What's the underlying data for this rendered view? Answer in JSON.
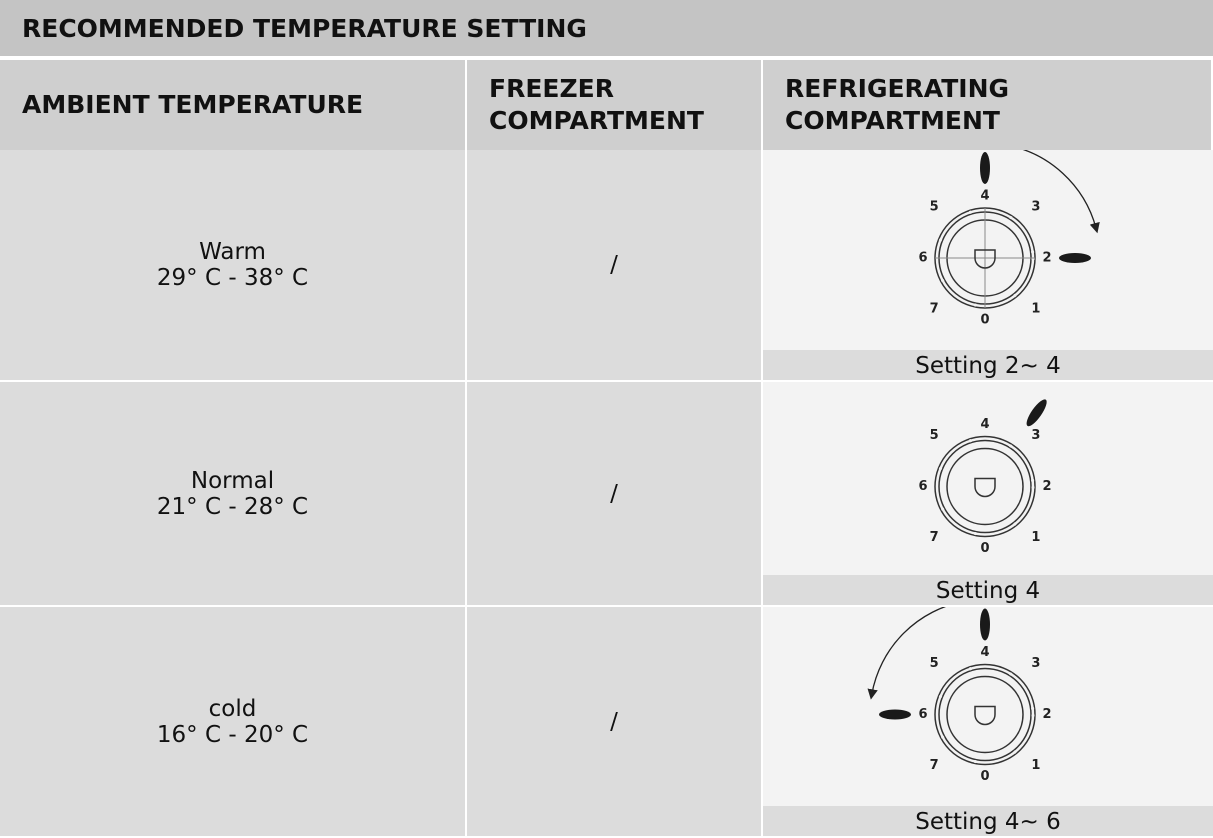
{
  "title": "RECOMMENDED TEMPERATURE SETTING",
  "table": {
    "header": [
      "AMBIENT TEMPERATURE",
      "FREEZER COMPARTMENT",
      "REFRIGERATING COMPARTMENT"
    ],
    "rows": [
      {
        "condition": "Warm",
        "range": "29° C - 38° C",
        "freezer": "/",
        "setting": "Setting 2~ 4"
      },
      {
        "condition": "Normal",
        "range": "21° C - 28° C",
        "freezer": "/",
        "setting": "Setting 4"
      },
      {
        "condition": "cold",
        "range": "16° C - 20° C",
        "freezer": "/",
        "setting": "Setting 4~ 6"
      }
    ]
  },
  "dial_labels": [
    "0",
    "1",
    "2",
    "3",
    "4",
    "5",
    "6",
    "7"
  ]
}
